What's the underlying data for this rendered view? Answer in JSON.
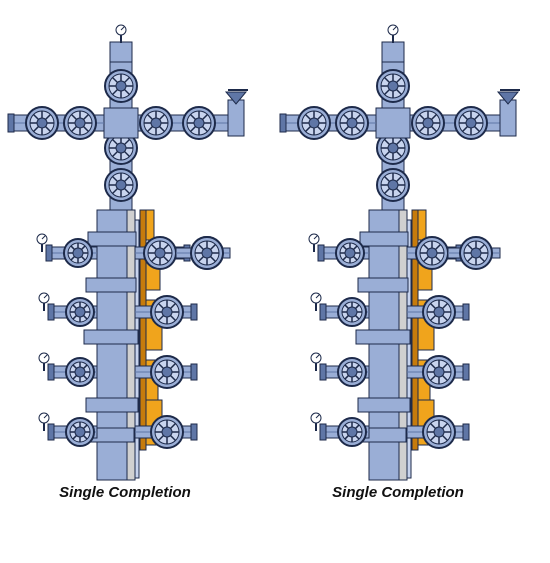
{
  "colors": {
    "steel": "#9aaed6",
    "steel_light": "#c8d4ee",
    "steel_dark": "#5f76a6",
    "outline": "#1d2a4a",
    "gauge": "#ffffff",
    "orange": "#f0a41c",
    "orange_dark": "#c67b0c",
    "pipe_gray": "#d0d0d0"
  },
  "diagrams": [
    {
      "caption": "Single Completion",
      "icon": "wellhead-christmas-tree-single-completion",
      "left_casing_valves": 4,
      "right_casing_valves": 4,
      "right_tubing_wing_valves": 3
    },
    {
      "caption": "Single Completion",
      "icon": "wellhead-christmas-tree-single-completion",
      "left_casing_valves": 4,
      "right_casing_valves": 4,
      "right_tubing_wing_valves": 2
    }
  ]
}
